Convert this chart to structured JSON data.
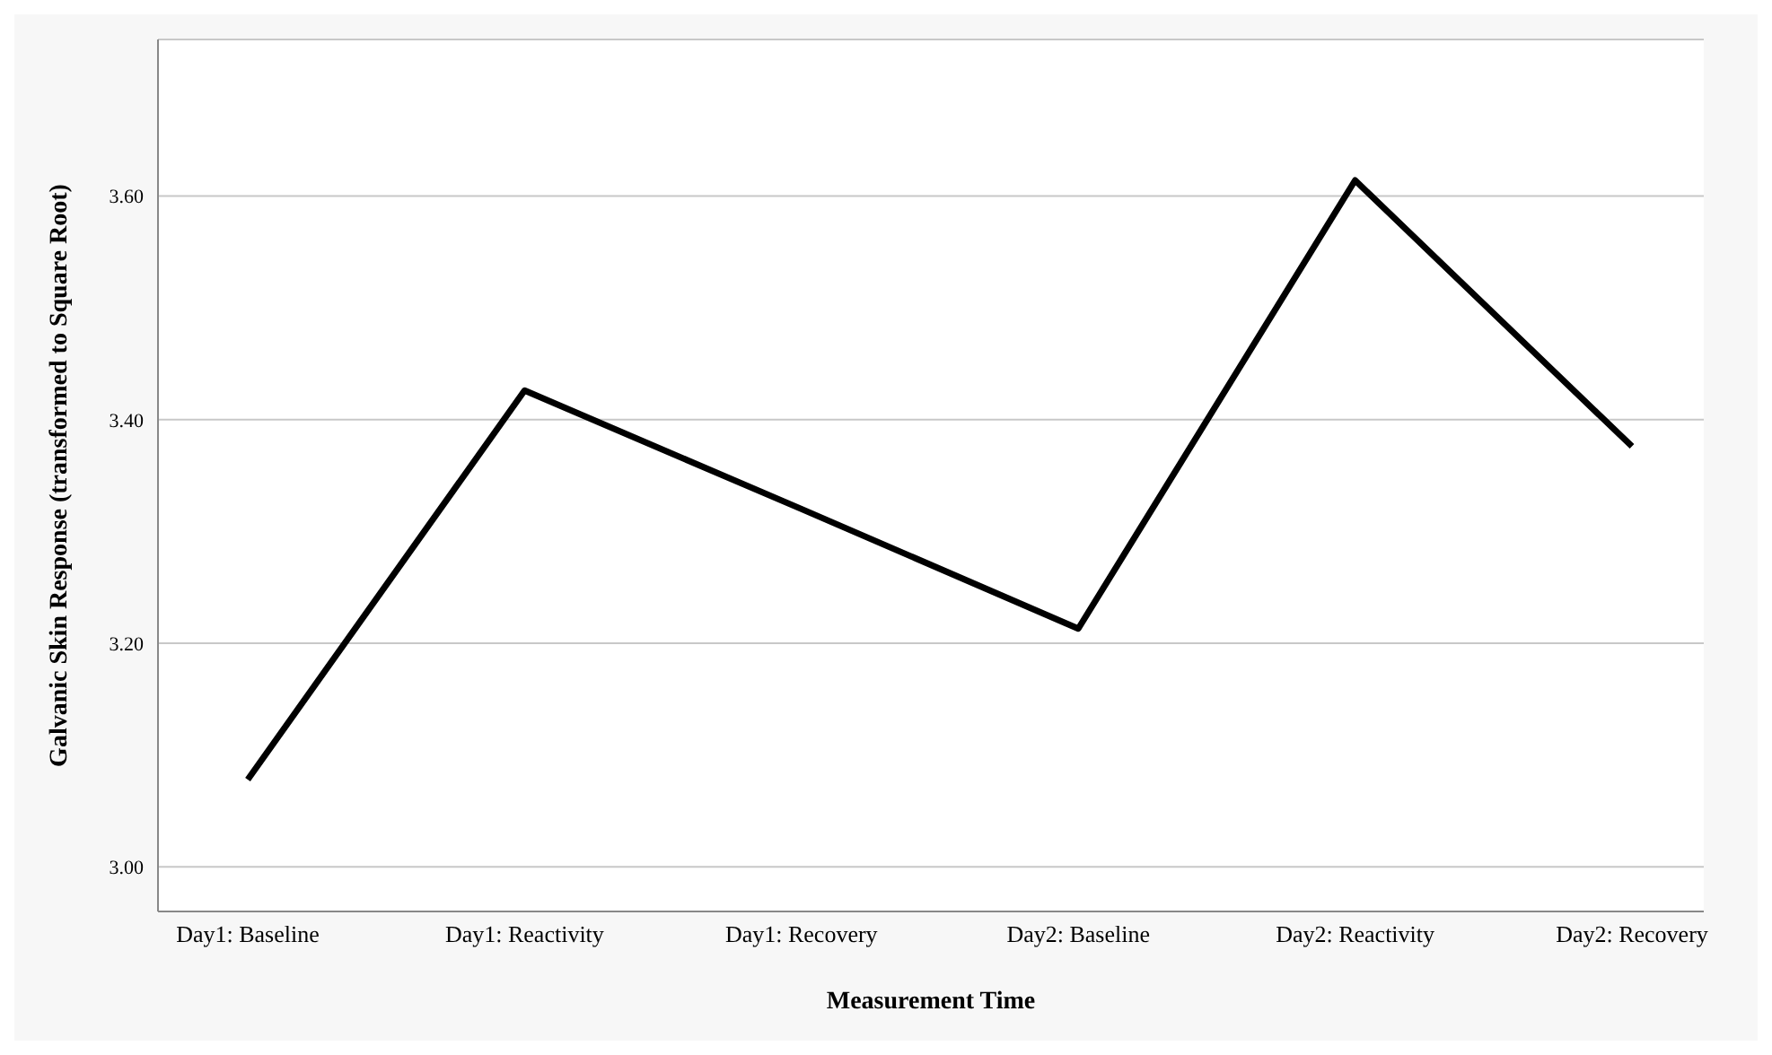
{
  "chart_data": {
    "type": "line",
    "xlabel": "Measurement Time",
    "ylabel": "Galvanic Skin Response (transformed to Square Root)",
    "categories": [
      "Day1: Baseline",
      "Day1: Reactivity",
      "Day1: Recovery",
      "Day2: Baseline",
      "Day2: Reactivity",
      "Day2: Recovery"
    ],
    "series": [
      {
        "color": "#000000",
        "values": [
          3.078,
          3.426,
          3.32,
          3.213,
          3.614,
          3.376
        ]
      }
    ],
    "ylim": [
      2.96,
      3.74
    ],
    "yticks": [
      {
        "value": 3.0,
        "label": "3.00"
      },
      {
        "value": 3.2,
        "label": "3.20"
      },
      {
        "value": 3.4,
        "label": "3.40"
      },
      {
        "value": 3.6,
        "label": "3.60"
      }
    ],
    "grid": "y",
    "legend": false,
    "marker": "none",
    "line_style": "solid"
  }
}
